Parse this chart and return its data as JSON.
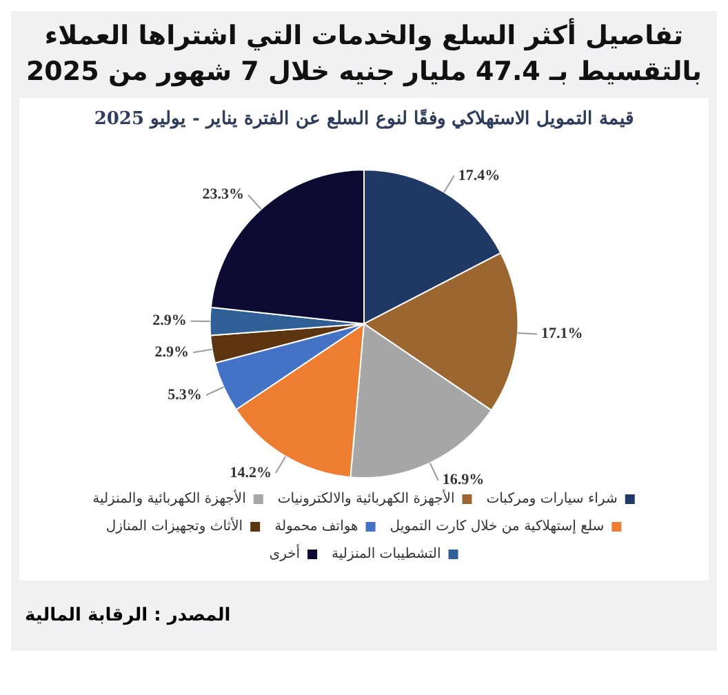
{
  "chart_data": {
    "type": "pie",
    "title": "تفاصيل أكثر السلع والخدمات التي اشتراها العملاء بالتقسيط بـ 47.4 مليار جنيه خلال 7 شهور من 2025",
    "subtitle": "قيمة التمويل الاستهلاكي وفقًا لنوع السلع عن الفترة يناير - يوليو 2025",
    "categories": [
      "شراء سيارات ومركبات",
      "الأجهزة الكهربائية والالكترونيات",
      "الأجهزة الكهربائية والمنزلية",
      "سلع إستهلاكية من خلال كارت التمويل",
      "هواتف محمولة",
      "الأثاث وتجهيزات المنازل",
      "التشطيبات المنزلية",
      "أخرى"
    ],
    "values": [
      17.4,
      17.1,
      16.9,
      14.2,
      5.3,
      2.9,
      2.9,
      23.3
    ],
    "value_labels": [
      "17.4%",
      "17.1%",
      "16.9%",
      "14.2%",
      "5.3%",
      "2.9%",
      "2.9%",
      "23.3%"
    ],
    "colors": [
      "#1f3864",
      "#9c6630",
      "#a6a6a6",
      "#ed7d31",
      "#4472c4",
      "#5c3510",
      "#2e6096",
      "#0b0b33"
    ],
    "legend": "bottom",
    "annotations": [
      "المصدر : الرقابة المالية"
    ]
  }
}
